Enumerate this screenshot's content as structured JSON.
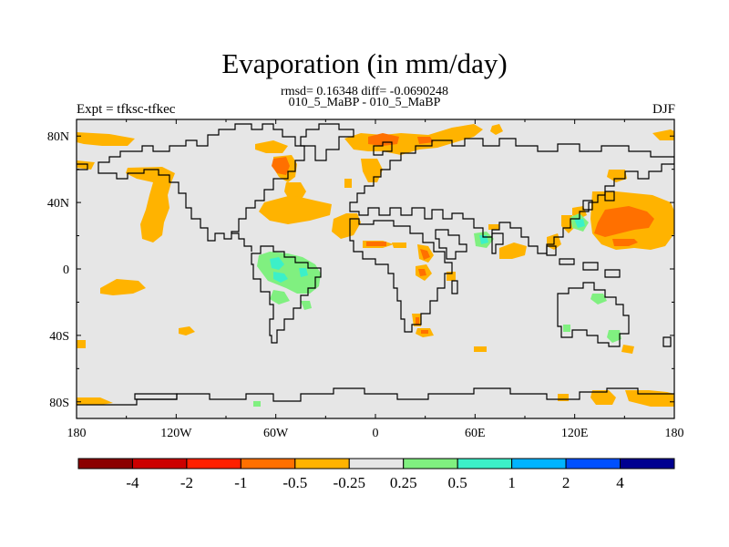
{
  "title": "Evaporation (in mm/day)",
  "stats_line": "rmsd= 0.16348 diff= -0.0690248",
  "cases_line": "010_5_MaBP - 010_5_MaBP",
  "left_label": "Expt = tfksc-tfkec",
  "right_label": "DJF",
  "x_ticks": [
    "180",
    "120W",
    "60W",
    "0",
    "60E",
    "120E",
    "180"
  ],
  "y_ticks": [
    "80N",
    "40N",
    "0",
    "40S",
    "80S"
  ],
  "colorbar": {
    "colors": [
      "#8b0000",
      "#cc0000",
      "#ff2000",
      "#ff7000",
      "#ffb300",
      "#e6e6e6",
      "#80f080",
      "#3cf0c8",
      "#00b4ff",
      "#0050ff",
      "#000090"
    ],
    "labels": [
      "-4",
      "-2",
      "-1",
      "-0.5",
      "-0.25",
      "0.25",
      "0.5",
      "1",
      "2",
      "4"
    ]
  },
  "map_colors": {
    "background": "#e6e6e6",
    "level_neg_025": "#ffb300",
    "level_neg_05": "#ff7000",
    "level_pos_025": "#80f080",
    "level_pos_05": "#3cf0c8",
    "coastline": "#000000"
  }
}
